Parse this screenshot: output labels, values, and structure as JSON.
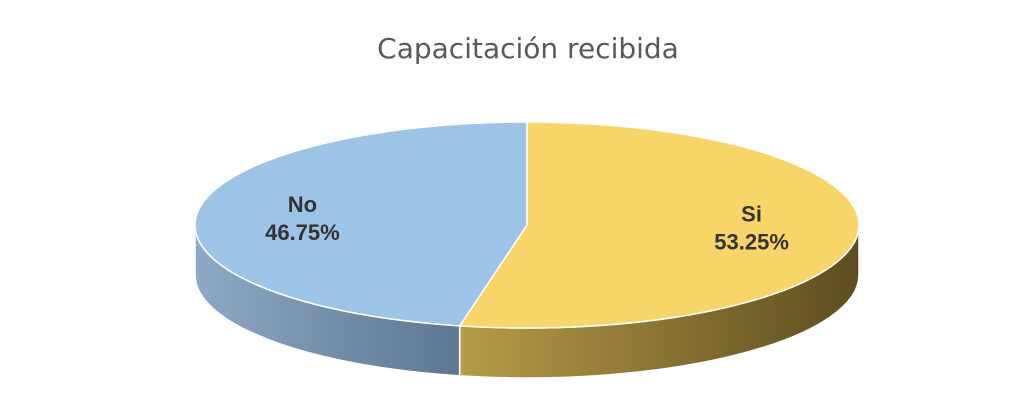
{
  "chart_data": {
    "type": "pie",
    "title": "Capacitación recibida",
    "categories": [
      "Si",
      "No"
    ],
    "values": [
      53.25,
      46.75
    ],
    "value_labels": [
      "53.25%",
      "46.75%"
    ],
    "colors": [
      "#f8d568",
      "#9dc3e6"
    ]
  }
}
